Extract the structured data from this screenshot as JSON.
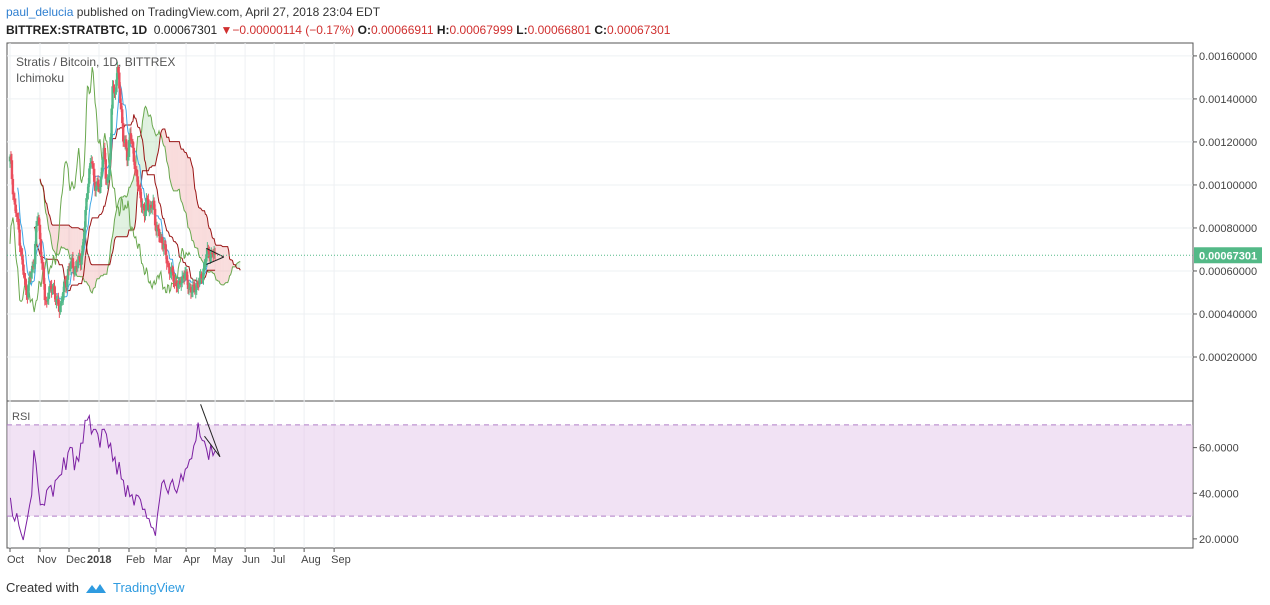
{
  "header": {
    "user": "paul_delucia",
    "published_text": " published on TradingView.com, April 27, 2018 23:04 EDT",
    "symbol": "BITTREX:STRATBTC, 1D",
    "last": "0.00067301",
    "arrow": "▼",
    "change": "−0.00000114 (−0.17%)",
    "o_label": "O:",
    "o_value": "0.00066911",
    "h_label": "H:",
    "h_value": "0.00067999",
    "l_label": "L:",
    "l_value": "0.00066801",
    "c_label": "C:",
    "c_value": "0.00067301"
  },
  "legend": {
    "title": "Stratis / Bitcoin, 1D, BITTREX",
    "indicator": "Ichimoku",
    "rsi_label": "RSI"
  },
  "footer": {
    "created_with": "Created with",
    "brand": "TradingView"
  },
  "colors": {
    "up": "#53b987",
    "down": "#eb4d5c",
    "tenkan": "#3ea6e6",
    "kijun": "#991515",
    "chikou": "#6aa84f",
    "cloud_bull": "#a5d6a7",
    "cloud_bear": "#ef9a9a",
    "rsi_line": "#7b1fa2",
    "rsi_band": "#e1bee7",
    "price_tag": "#53b987"
  },
  "chart_data": [
    {
      "type": "candlestick",
      "title": "Stratis / Bitcoin, 1D, BITTREX",
      "indicator": "Ichimoku",
      "x_tick_labels": [
        "Oct",
        "Nov",
        "Dec",
        "2018",
        "Feb",
        "Mar",
        "Apr",
        "May",
        "Jun",
        "Jul",
        "Aug",
        "Sep"
      ],
      "y_tick_labels": [
        "0.00160000",
        "0.00140000",
        "0.00120000",
        "0.00100000",
        "0.00080000",
        "0.00060000",
        "0.00040000",
        "0.00020000"
      ],
      "ylim": [
        0.0,
        0.00166
      ],
      "last_price_label": "0.00067301",
      "last_price": 0.00067301,
      "close_path": [
        [
          1,
          0.00112
        ],
        [
          6,
          0.001
        ],
        [
          11,
          0.0009
        ],
        [
          16,
          0.00085
        ],
        [
          21,
          0.00078
        ],
        [
          26,
          0.00068
        ],
        [
          31,
          0.0006
        ],
        [
          36,
          0.00052
        ],
        [
          41,
          0.0005
        ],
        [
          46,
          0.00056
        ],
        [
          51,
          0.0006
        ],
        [
          56,
          0.00064
        ],
        [
          61,
          0.00078
        ],
        [
          66,
          0.00086
        ],
        [
          71,
          0.00073
        ],
        [
          76,
          0.00062
        ],
        [
          81,
          0.00048
        ],
        [
          86,
          0.00045
        ],
        [
          91,
          0.00052
        ],
        [
          96,
          0.0005
        ],
        [
          101,
          0.00054
        ],
        [
          106,
          0.00048
        ],
        [
          111,
          0.00044
        ],
        [
          116,
          0.00043
        ],
        [
          121,
          0.00046
        ],
        [
          126,
          0.00052
        ],
        [
          131,
          0.00054
        ],
        [
          136,
          0.0006
        ],
        [
          141,
          0.00062
        ],
        [
          146,
          0.00064
        ],
        [
          151,
          0.0006
        ],
        [
          156,
          0.00062
        ],
        [
          161,
          0.00065
        ],
        [
          166,
          0.00066
        ],
        [
          171,
          0.00071
        ],
        [
          176,
          0.00084
        ],
        [
          181,
          0.00098
        ],
        [
          186,
          0.00106
        ],
        [
          191,
          0.00112
        ],
        [
          196,
          0.00105
        ],
        [
          201,
          0.00098
        ],
        [
          206,
          0.001
        ],
        [
          211,
          0.00098
        ],
        [
          216,
          0.00112
        ],
        [
          221,
          0.00115
        ],
        [
          226,
          0.001
        ],
        [
          231,
          0.00105
        ],
        [
          236,
          0.0012
        ],
        [
          241,
          0.0015
        ],
        [
          246,
          0.0014
        ],
        [
          251,
          0.00155
        ],
        [
          256,
          0.00146
        ],
        [
          261,
          0.00135
        ],
        [
          266,
          0.0012
        ],
        [
          271,
          0.00118
        ],
        [
          276,
          0.00112
        ],
        [
          281,
          0.00125
        ],
        [
          286,
          0.00118
        ],
        [
          291,
          0.00112
        ],
        [
          296,
          0.00105
        ],
        [
          301,
          0.00098
        ],
        [
          306,
          0.00095
        ],
        [
          311,
          0.0009
        ],
        [
          316,
          0.00085
        ],
        [
          321,
          0.00094
        ],
        [
          326,
          0.0009
        ],
        [
          331,
          0.00088
        ],
        [
          336,
          0.00092
        ],
        [
          341,
          0.00082
        ],
        [
          346,
          0.00078
        ],
        [
          351,
          0.00076
        ],
        [
          356,
          0.00074
        ],
        [
          361,
          0.00072
        ],
        [
          366,
          0.00066
        ],
        [
          371,
          0.00062
        ],
        [
          376,
          0.0006
        ],
        [
          381,
          0.00058
        ],
        [
          386,
          0.00055
        ],
        [
          391,
          0.00054
        ],
        [
          396,
          0.00052
        ],
        [
          401,
          0.00056
        ],
        [
          406,
          0.00058
        ],
        [
          411,
          0.00058
        ],
        [
          416,
          0.00055
        ],
        [
          421,
          0.00052
        ],
        [
          426,
          0.0005
        ],
        [
          431,
          0.00052
        ],
        [
          436,
          0.00053
        ],
        [
          441,
          0.00054
        ],
        [
          446,
          0.00056
        ],
        [
          451,
          0.00059
        ],
        [
          456,
          0.00062
        ],
        [
          461,
          0.00068
        ],
        [
          466,
          0.0007
        ],
        [
          471,
          0.00066
        ],
        [
          476,
          0.00068
        ],
        [
          481,
          0.00067
        ]
      ]
    },
    {
      "type": "line",
      "title": "RSI",
      "y_tick_labels": [
        "60.0000",
        "40.0000",
        "20.0000"
      ],
      "ylim": [
        16,
        80
      ],
      "band": [
        30,
        70
      ],
      "x": [
        1,
        6,
        11,
        16,
        21,
        26,
        31,
        36,
        41,
        46,
        51,
        56,
        61,
        66,
        71,
        76,
        81,
        86,
        91,
        96,
        101,
        106,
        111,
        116,
        121,
        126,
        131,
        136,
        141,
        146,
        151,
        156,
        161,
        166,
        171,
        176,
        181,
        186,
        191,
        196,
        201,
        206,
        211,
        216,
        221,
        226,
        231,
        236,
        241,
        246,
        251,
        256,
        261,
        266,
        271,
        276,
        281,
        286,
        291,
        296,
        301,
        306,
        311,
        316,
        321,
        326,
        331,
        336,
        341,
        346,
        351,
        356,
        361,
        366,
        371,
        376,
        381,
        386,
        391,
        396,
        401,
        406,
        411,
        416,
        421,
        426,
        431,
        436,
        441,
        446,
        451,
        456,
        461,
        466,
        471,
        476,
        481
      ],
      "values": [
        38,
        30,
        28,
        31,
        26,
        22,
        20,
        24,
        30,
        34,
        40,
        58,
        54,
        42,
        36,
        34,
        36,
        40,
        44,
        42,
        40,
        44,
        48,
        46,
        50,
        54,
        52,
        56,
        62,
        58,
        52,
        54,
        56,
        60,
        64,
        70,
        74,
        72,
        68,
        66,
        70,
        64,
        62,
        66,
        70,
        64,
        62,
        60,
        56,
        54,
        50,
        52,
        48,
        44,
        40,
        42,
        40,
        38,
        36,
        38,
        40,
        36,
        34,
        32,
        30,
        28,
        26,
        24,
        22,
        30,
        38,
        44,
        46,
        42,
        40,
        44,
        46,
        42,
        40,
        44,
        48,
        46,
        50,
        52,
        54,
        56,
        60,
        64,
        70,
        66,
        62,
        64,
        58,
        56,
        60,
        58,
        57
      ]
    }
  ]
}
